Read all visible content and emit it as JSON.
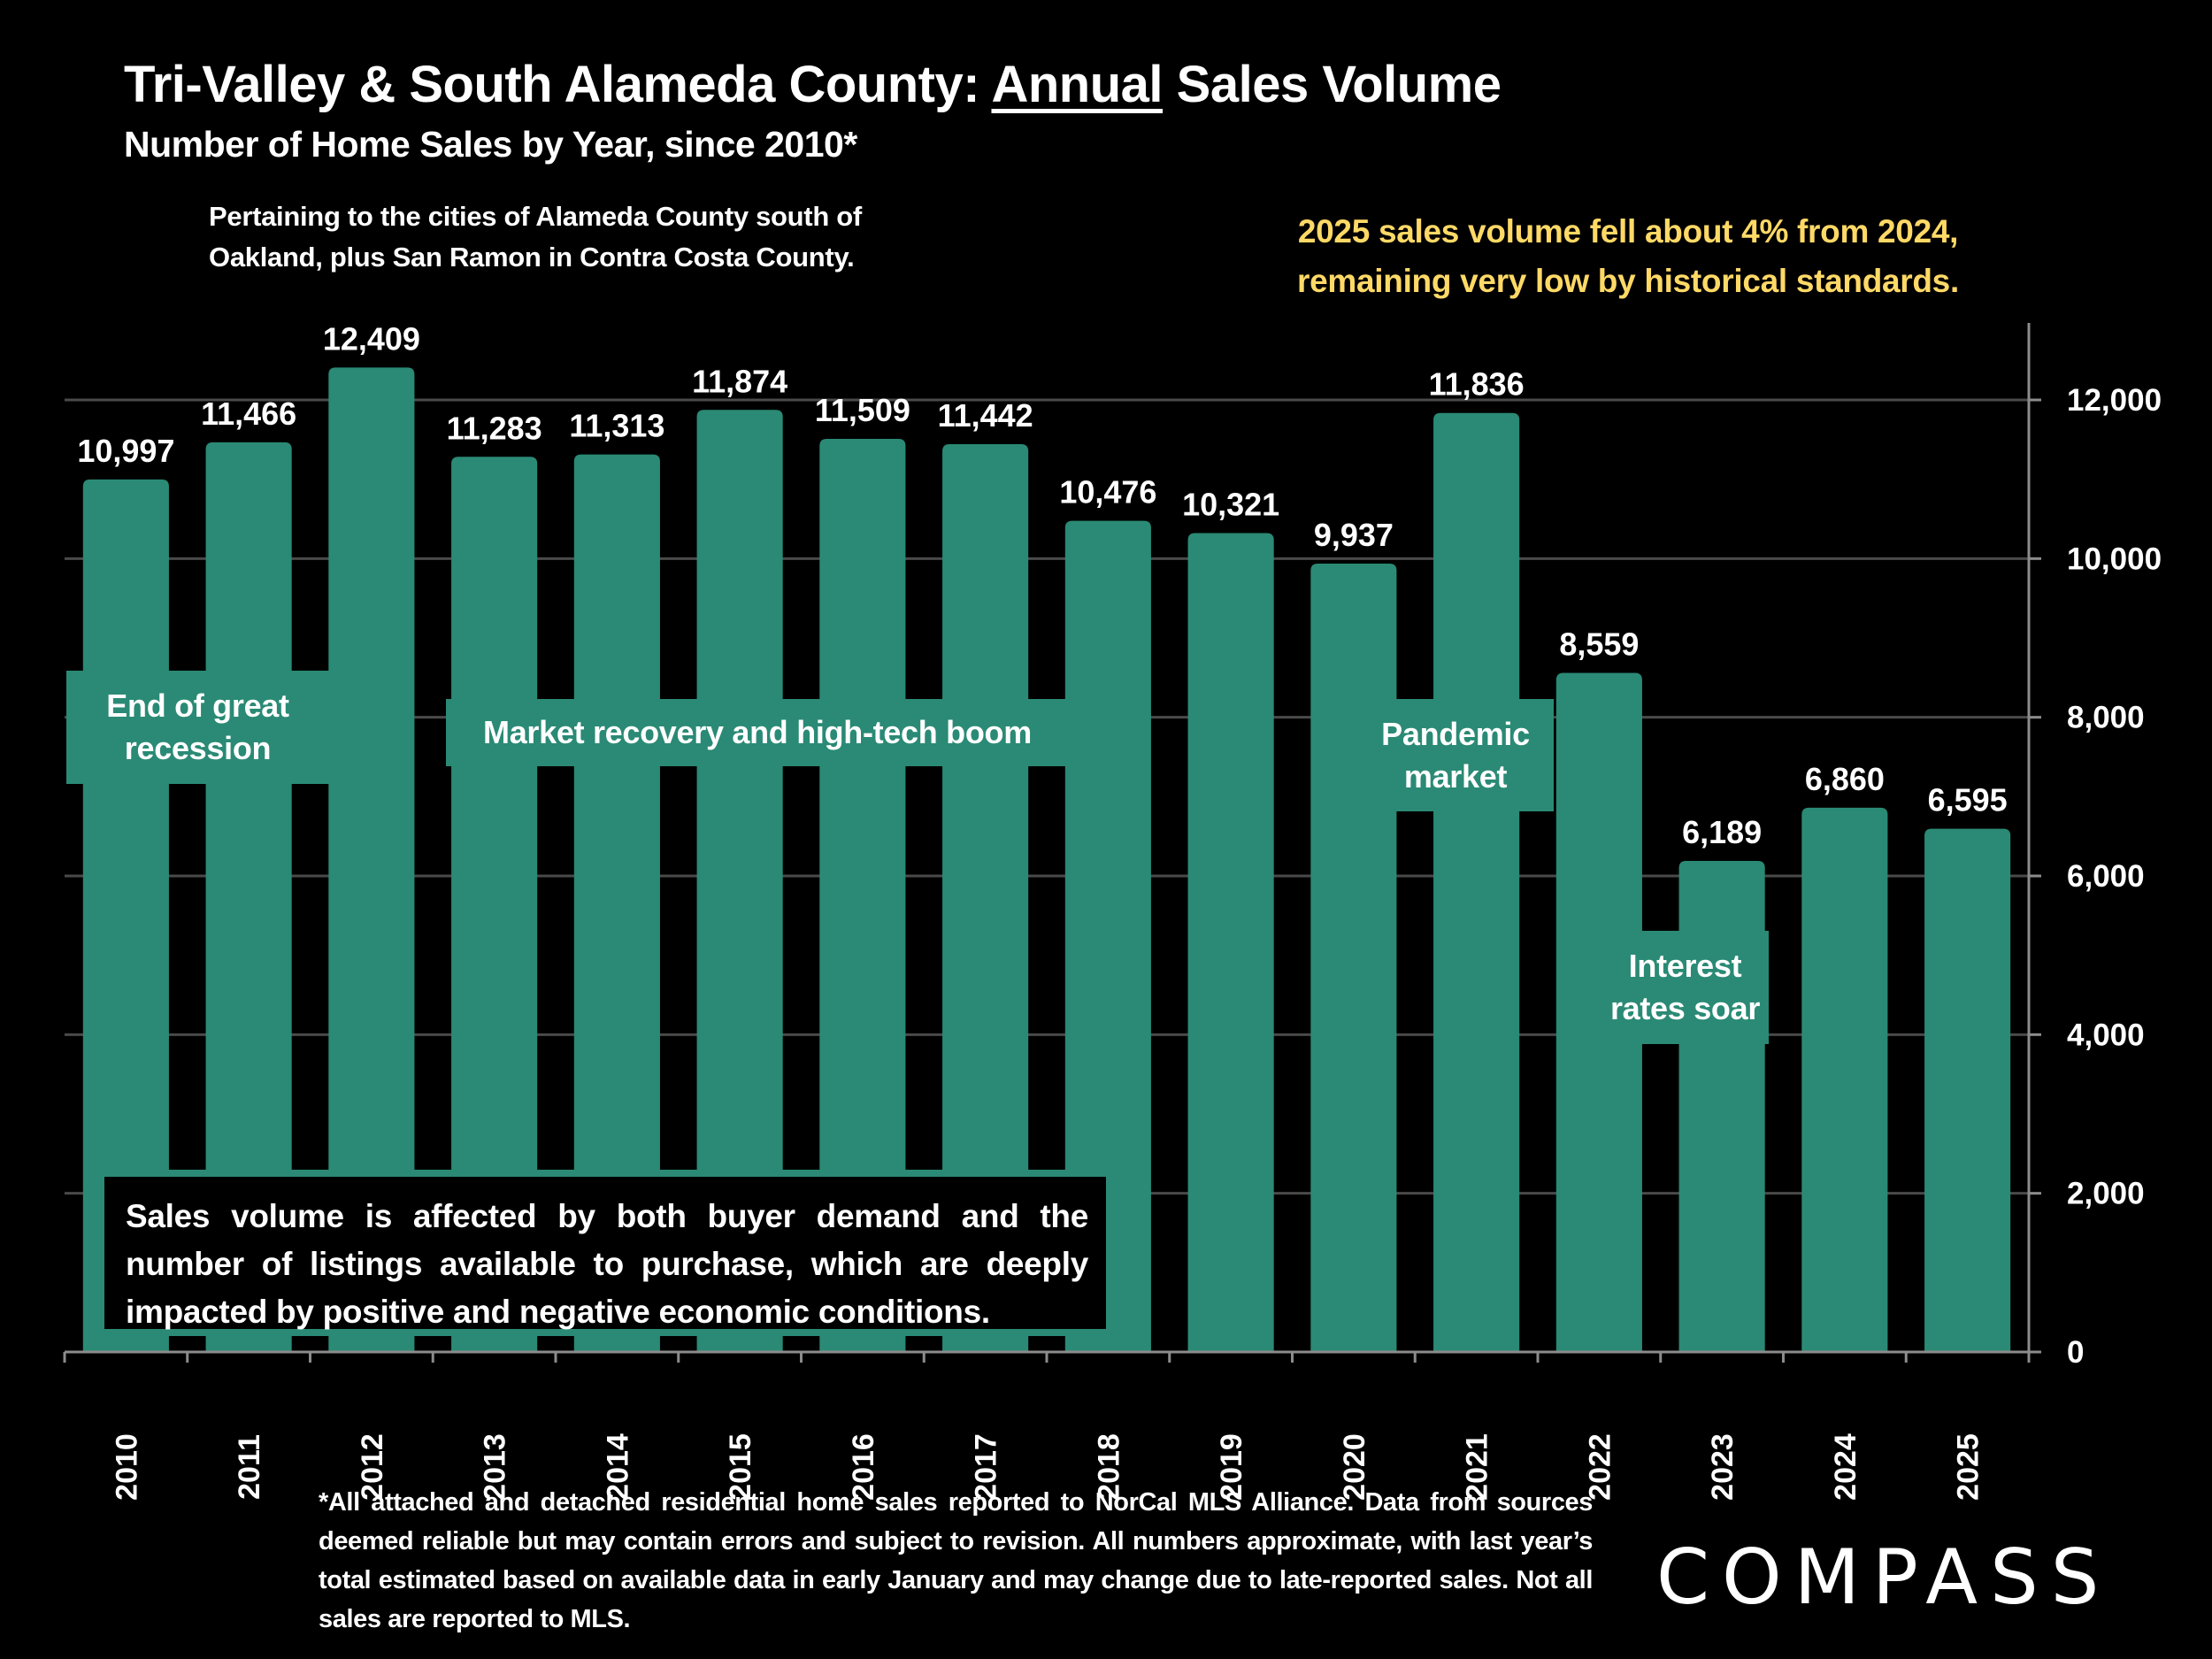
{
  "header": {
    "title_prefix": "Tri-Valley & South Alameda County:  ",
    "title_underlined": "Annual",
    "title_suffix": " Sales Volume",
    "subtitle": "Number of Home Sales by Year, since 2010*",
    "region_note_line1": "Pertaining to the cities of Alameda County south of",
    "region_note_line2": "Oakland, plus San Ramon in Contra Costa County.",
    "callout_line1": "2025 sales volume fell about 4% from 2024,",
    "callout_line2": "remaining very low by historical standards."
  },
  "annotations": {
    "end_recession_line1": "End of great",
    "end_recession_line2": "recession",
    "recovery": "Market recovery and high-tech boom",
    "pandemic_line1": "Pandemic",
    "pandemic_line2": "market",
    "rates_line1": "Interest",
    "rates_line2": "rates soar"
  },
  "note_box": "Sales volume is affected by both buyer demand and the number of listings available to purchase, which are deeply impacted by positive and negative economic conditions.",
  "footnote": "*All attached and detached residential home sales reported to NorCal MLS Alliance. Data from sources deemed reliable but may contain errors and subject to revision. All numbers approximate, with last year’s total estimated based on available data in early January and may change due to late-reported sales. Not all sales are reported to MLS.",
  "logo": {
    "text": "COMPASS"
  },
  "colors": {
    "bar": "#2a8a75",
    "background": "#000000",
    "callout": "#ffd966",
    "grid": "#4a4a4a",
    "axis": "#8c8c8c"
  },
  "chart_data": {
    "type": "bar",
    "title": "Tri-Valley & South Alameda County: Annual Sales Volume",
    "subtitle": "Number of Home Sales by Year, since 2010*",
    "xlabel": "",
    "ylabel": "",
    "categories": [
      "2010",
      "2011",
      "2012",
      "2013",
      "2014",
      "2015",
      "2016",
      "2017",
      "2018",
      "2019",
      "2020",
      "2021",
      "2022",
      "2023",
      "2024",
      "2025"
    ],
    "values": [
      10997,
      11466,
      12409,
      11283,
      11313,
      11874,
      11509,
      11442,
      10476,
      10321,
      9937,
      11836,
      8559,
      6189,
      6860,
      6595
    ],
    "value_labels": [
      "10,997",
      "11,466",
      "12,409",
      "11,283",
      "11,313",
      "11,874",
      "11,509",
      "11,442",
      "10,476",
      "10,321",
      "9,937",
      "11,836",
      "8,559",
      "6,189",
      "6,860",
      "6,595"
    ],
    "ylim": [
      0,
      13000
    ],
    "yticks": [
      0,
      2000,
      4000,
      6000,
      8000,
      10000,
      12000
    ],
    "ytick_labels": [
      "0",
      "2,000",
      "4,000",
      "6,000",
      "8,000",
      "10,000",
      "12,000"
    ],
    "y_axis_side": "right",
    "grid": true,
    "legend": "none"
  }
}
